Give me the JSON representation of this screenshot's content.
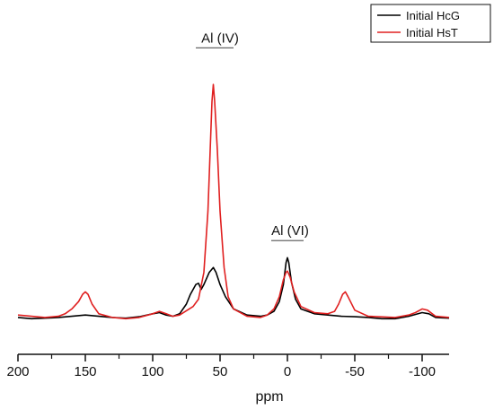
{
  "chart_data": {
    "type": "line",
    "xlabel": "ppm",
    "ylabel": "",
    "xlim": [
      200,
      -120
    ],
    "x_reversed": true,
    "x_ticks": [
      200,
      150,
      100,
      50,
      0,
      -50,
      -100
    ],
    "y_ticks_shown": false,
    "grid": false,
    "legend_position": "top-right",
    "ylim": [
      0,
      100
    ],
    "series": [
      {
        "name": "Initial HcG",
        "color": "#000000",
        "points": [
          [
            200,
            1.5
          ],
          [
            190,
            1.0
          ],
          [
            180,
            1.2
          ],
          [
            170,
            1.5
          ],
          [
            160,
            2.0
          ],
          [
            150,
            2.5
          ],
          [
            140,
            2.0
          ],
          [
            130,
            1.5
          ],
          [
            120,
            1.2
          ],
          [
            110,
            1.8
          ],
          [
            100,
            3.0
          ],
          [
            95,
            3.5
          ],
          [
            90,
            2.5
          ],
          [
            85,
            2.0
          ],
          [
            80,
            3.0
          ],
          [
            75,
            7.0
          ],
          [
            72,
            11.0
          ],
          [
            68,
            15.0
          ],
          [
            66,
            15.5
          ],
          [
            64,
            13.0
          ],
          [
            62,
            15.0
          ],
          [
            58,
            20.0
          ],
          [
            55,
            22.0
          ],
          [
            53,
            20.0
          ],
          [
            50,
            15.0
          ],
          [
            46,
            10.0
          ],
          [
            40,
            5.0
          ],
          [
            30,
            2.5
          ],
          [
            20,
            2.0
          ],
          [
            15,
            2.5
          ],
          [
            10,
            4.0
          ],
          [
            6,
            8.0
          ],
          [
            3,
            15.0
          ],
          [
            1,
            24.0
          ],
          [
            0,
            26.0
          ],
          [
            -1,
            24.0
          ],
          [
            -3,
            16.0
          ],
          [
            -6,
            9.0
          ],
          [
            -10,
            5.0
          ],
          [
            -20,
            3.0
          ],
          [
            -30,
            2.5
          ],
          [
            -40,
            2.0
          ],
          [
            -50,
            1.8
          ],
          [
            -60,
            1.5
          ],
          [
            -70,
            1.0
          ],
          [
            -80,
            1.0
          ],
          [
            -90,
            2.0
          ],
          [
            -100,
            3.5
          ],
          [
            -105,
            3.0
          ],
          [
            -110,
            1.5
          ],
          [
            -120,
            1.2
          ]
        ]
      },
      {
        "name": "Initial HsT",
        "color": "#e02020",
        "points": [
          [
            200,
            2.5
          ],
          [
            190,
            2.0
          ],
          [
            180,
            1.5
          ],
          [
            170,
            2.0
          ],
          [
            165,
            3.0
          ],
          [
            160,
            5.0
          ],
          [
            155,
            8.0
          ],
          [
            152,
            11.0
          ],
          [
            150,
            12.0
          ],
          [
            148,
            11.0
          ],
          [
            145,
            7.0
          ],
          [
            140,
            3.0
          ],
          [
            130,
            1.5
          ],
          [
            120,
            1.0
          ],
          [
            110,
            1.5
          ],
          [
            100,
            3.0
          ],
          [
            95,
            4.0
          ],
          [
            90,
            3.0
          ],
          [
            85,
            2.0
          ],
          [
            80,
            2.5
          ],
          [
            70,
            6.0
          ],
          [
            66,
            9.0
          ],
          [
            62,
            20.0
          ],
          [
            59,
            45.0
          ],
          [
            57,
            75.0
          ],
          [
            56,
            90.0
          ],
          [
            55,
            97.0
          ],
          [
            54,
            90.0
          ],
          [
            52,
            70.0
          ],
          [
            50,
            45.0
          ],
          [
            47,
            22.0
          ],
          [
            44,
            10.0
          ],
          [
            40,
            5.0
          ],
          [
            30,
            2.0
          ],
          [
            20,
            1.5
          ],
          [
            15,
            2.5
          ],
          [
            10,
            5.0
          ],
          [
            6,
            10.0
          ],
          [
            3,
            17.0
          ],
          [
            1,
            20.0
          ],
          [
            0,
            20.5
          ],
          [
            -2,
            18.0
          ],
          [
            -5,
            12.0
          ],
          [
            -10,
            6.0
          ],
          [
            -20,
            3.5
          ],
          [
            -30,
            3.0
          ],
          [
            -35,
            4.0
          ],
          [
            -38,
            7.0
          ],
          [
            -41,
            11.0
          ],
          [
            -43,
            12.0
          ],
          [
            -45,
            10.0
          ],
          [
            -50,
            4.5
          ],
          [
            -60,
            2.0
          ],
          [
            -80,
            1.5
          ],
          [
            -90,
            2.5
          ],
          [
            -95,
            3.5
          ],
          [
            -100,
            5.0
          ],
          [
            -104,
            4.5
          ],
          [
            -110,
            2.0
          ],
          [
            -120,
            1.5
          ]
        ]
      }
    ],
    "annotations": [
      {
        "text": "Al (IV)",
        "x": 50,
        "x_range": [
          68,
          40
        ],
        "y": 112
      },
      {
        "text": "Al (VI)",
        "x": -2,
        "x_range": [
          12,
          -12
        ],
        "y": 33
      }
    ]
  }
}
